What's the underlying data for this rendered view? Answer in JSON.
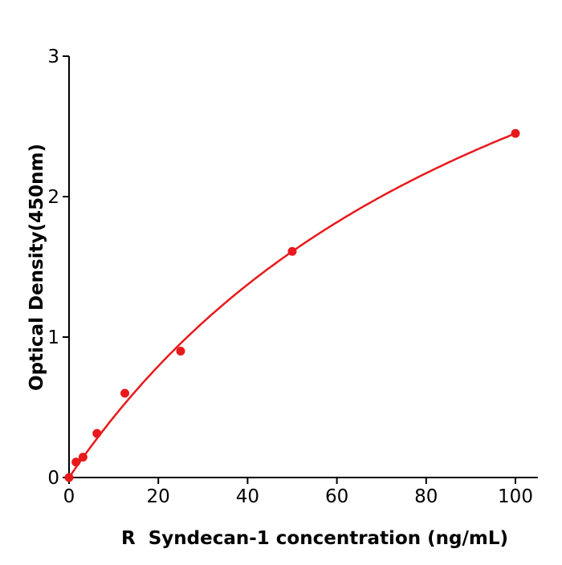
{
  "chart_data": {
    "type": "scatter",
    "title": "",
    "xlabel": "R  Syndecan-1 concentration (ng/mL)",
    "ylabel": "Optical Density(450nm)",
    "xlim": [
      0,
      105
    ],
    "ylim": [
      0,
      3
    ],
    "xticks": [
      0,
      20,
      40,
      60,
      80,
      100
    ],
    "yticks": [
      0,
      1,
      2,
      3
    ],
    "grid": false,
    "color": "#e8191c",
    "series": [
      {
        "x": [
          0,
          1.5625,
          3.125,
          6.25,
          12.5,
          25,
          50,
          100
        ],
        "y": [
          0.0,
          0.11,
          0.145,
          0.314,
          0.6,
          0.9,
          1.61,
          2.45
        ]
      }
    ],
    "fit_curve": true
  }
}
